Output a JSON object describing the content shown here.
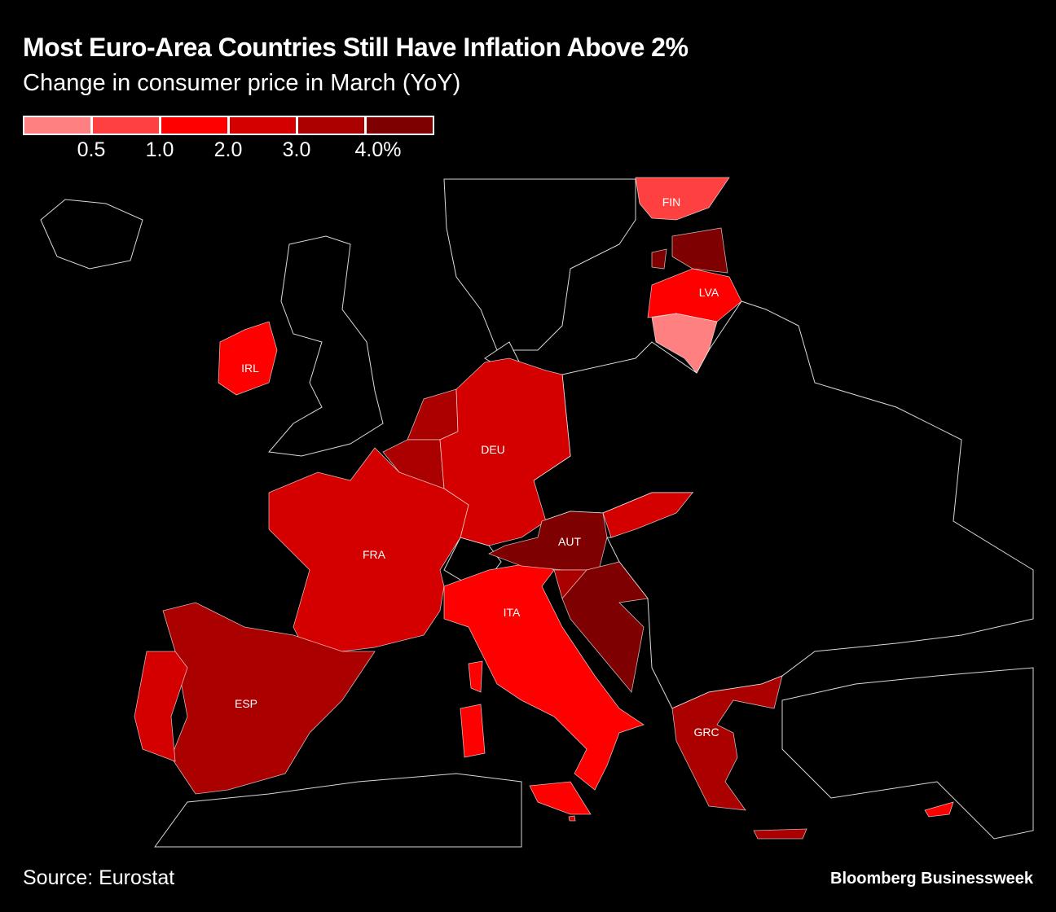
{
  "header": {
    "title": "Most Euro-Area Countries Still Have Inflation Above 2%",
    "subtitle": "Change in consumer price in March (YoY)"
  },
  "legend": {
    "colors": [
      "#ff8080",
      "#ff4040",
      "#ff0000",
      "#d40000",
      "#aa0000",
      "#7f0000"
    ],
    "ticks": [
      "0.5",
      "1.0",
      "2.0",
      "3.0",
      "4.0%"
    ]
  },
  "map_data": {
    "type": "choropleth",
    "countries": [
      {
        "code": "FIN",
        "label": "FIN",
        "bin": 1
      },
      {
        "code": "EST",
        "label": "",
        "bin": 5
      },
      {
        "code": "LVA",
        "label": "LVA",
        "bin": 2
      },
      {
        "code": "LTU",
        "label": "",
        "bin": 0
      },
      {
        "code": "IRL",
        "label": "IRL",
        "bin": 2
      },
      {
        "code": "NLD",
        "label": "",
        "bin": 4
      },
      {
        "code": "BEL",
        "label": "",
        "bin": 4
      },
      {
        "code": "DEU",
        "label": "DEU",
        "bin": 3
      },
      {
        "code": "FRA",
        "label": "FRA",
        "bin": 3
      },
      {
        "code": "ESP",
        "label": "ESP",
        "bin": 4
      },
      {
        "code": "PRT",
        "label": "",
        "bin": 3
      },
      {
        "code": "ITA",
        "label": "ITA",
        "bin": 2
      },
      {
        "code": "AUT",
        "label": "AUT",
        "bin": 5
      },
      {
        "code": "SVN",
        "label": "",
        "bin": 4
      },
      {
        "code": "HRV",
        "label": "",
        "bin": 5
      },
      {
        "code": "SVK",
        "label": "",
        "bin": 3
      },
      {
        "code": "GRC",
        "label": "GRC",
        "bin": 4
      },
      {
        "code": "CYP",
        "label": "",
        "bin": 2
      },
      {
        "code": "MLT",
        "label": "",
        "bin": 3
      }
    ]
  },
  "footer": {
    "source": "Source: Eurostat",
    "brand": "Bloomberg Businessweek"
  }
}
